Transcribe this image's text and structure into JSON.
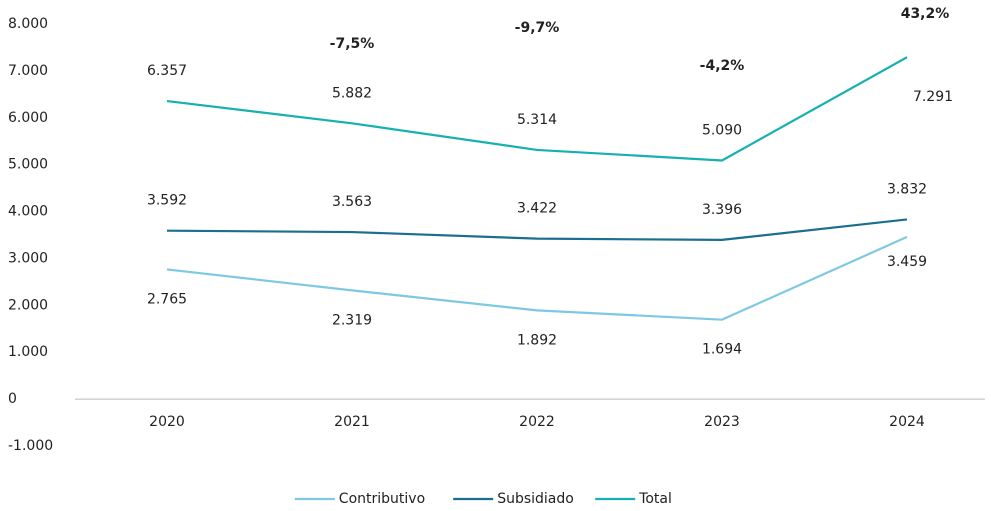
{
  "chart_data": {
    "type": "line",
    "categories": [
      "2020",
      "2021",
      "2022",
      "2023",
      "2024"
    ],
    "series": [
      {
        "name": "Contributivo",
        "color": "#7ec8e3",
        "values": [
          2765,
          2319,
          1892,
          1694,
          3459
        ],
        "value_labels": [
          "2.765",
          "2.319",
          "1.892",
          "1.694",
          "3.459"
        ]
      },
      {
        "name": "Subsidiado",
        "color": "#1a6e8e",
        "values": [
          3592,
          3563,
          3422,
          3396,
          3832
        ],
        "value_labels": [
          "3.592",
          "3.563",
          "3.422",
          "3.396",
          "3.832"
        ]
      },
      {
        "name": "Total",
        "color": "#17b0b0",
        "values": [
          6357,
          5882,
          5314,
          5090,
          7291
        ],
        "value_labels": [
          "6.357",
          "5.882",
          "5.314",
          "5.090",
          "7.291"
        ]
      }
    ],
    "change_labels": [
      null,
      "-7,5%",
      "-9,7%",
      "-4,2%",
      "43,2%"
    ],
    "ylim": [
      -1000,
      8000
    ],
    "yticks": [
      {
        "value": -1000,
        "label": "-1.000"
      },
      0,
      {
        "value": 1000,
        "label": "1.000"
      },
      {
        "value": 2000,
        "label": "2.000"
      },
      {
        "value": 3000,
        "label": "3.000"
      },
      {
        "value": 4000,
        "label": "4.000"
      },
      {
        "value": 5000,
        "label": "5.000"
      },
      {
        "value": 6000,
        "label": "6.000"
      },
      {
        "value": 7000,
        "label": "7.000"
      },
      {
        "value": 8000,
        "label": "8.000"
      }
    ],
    "grid": false,
    "legend": "bottom"
  }
}
